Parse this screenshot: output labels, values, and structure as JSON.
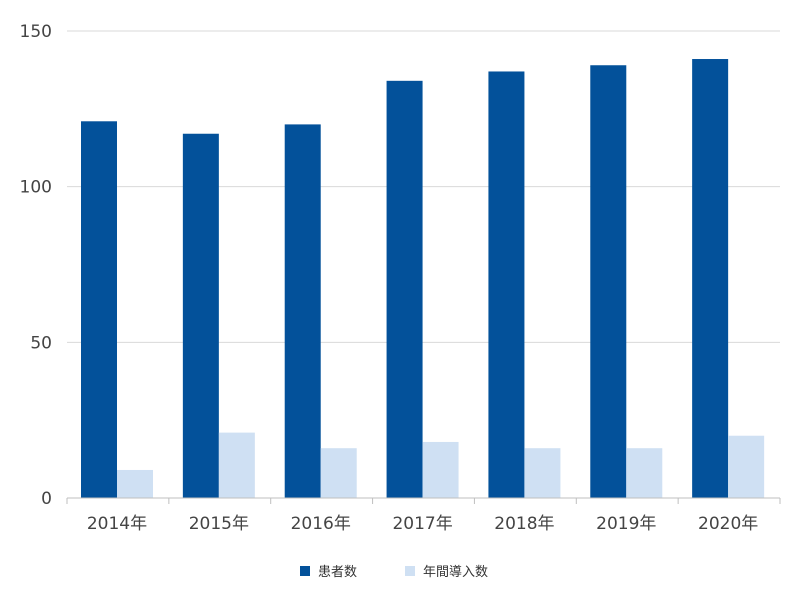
{
  "chart_data": {
    "type": "bar",
    "categories": [
      "2014年",
      "2015年",
      "2016年",
      "2017年",
      "2018年",
      "2019年",
      "2020年"
    ],
    "series": [
      {
        "name": "患者数",
        "values": [
          121,
          117,
          120,
          134,
          137,
          139,
          141
        ],
        "color": "#03519a"
      },
      {
        "name": "年間導入数",
        "values": [
          9,
          21,
          16,
          18,
          16,
          16,
          20
        ],
        "color": "#cfe0f3"
      }
    ],
    "yticks": [
      "0",
      "50",
      "100",
      "150"
    ],
    "ylim": [
      0,
      150
    ],
    "grid": true,
    "legend": "bottom"
  }
}
